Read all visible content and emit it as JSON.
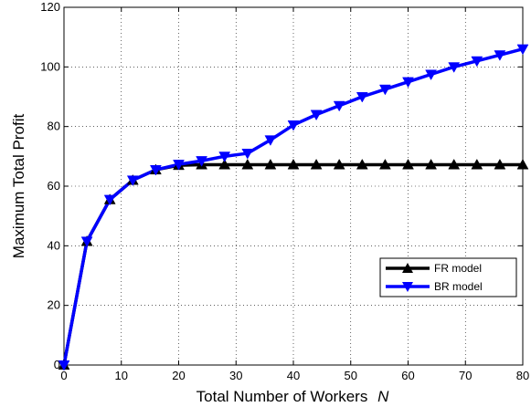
{
  "chart_data": {
    "type": "line",
    "title": "",
    "xlabel": "Total Number of Workers",
    "xlabel_symbol": "N",
    "ylabel": "Maximum Total Profit",
    "xlim": [
      0,
      80
    ],
    "ylim": [
      0,
      120
    ],
    "xticks": [
      "0",
      "10",
      "20",
      "30",
      "40",
      "50",
      "60",
      "70",
      "80"
    ],
    "yticks": [
      "0",
      "20",
      "40",
      "60",
      "80",
      "100",
      "120"
    ],
    "grid": true,
    "legend_position": "lower-right",
    "x": [
      0,
      4,
      8,
      12,
      16,
      20,
      24,
      28,
      32,
      36,
      40,
      44,
      48,
      52,
      56,
      60,
      64,
      68,
      72,
      76,
      80
    ],
    "series": [
      {
        "name": "FR model",
        "color": "#000000",
        "marker": "triangle-up",
        "values": [
          0,
          41.5,
          55.5,
          62,
          65.5,
          67,
          67.2,
          67.2,
          67.2,
          67.2,
          67.2,
          67.2,
          67.2,
          67.2,
          67.2,
          67.2,
          67.2,
          67.2,
          67.2,
          67.2,
          67.2
        ]
      },
      {
        "name": "BR model",
        "color": "#0000ff",
        "marker": "triangle-down",
        "values": [
          0,
          41.5,
          55.5,
          62,
          65.5,
          67.3,
          68.5,
          70,
          71,
          75.5,
          80.5,
          84,
          87,
          90,
          92.5,
          95,
          97.5,
          100,
          102,
          104,
          106
        ]
      }
    ]
  }
}
